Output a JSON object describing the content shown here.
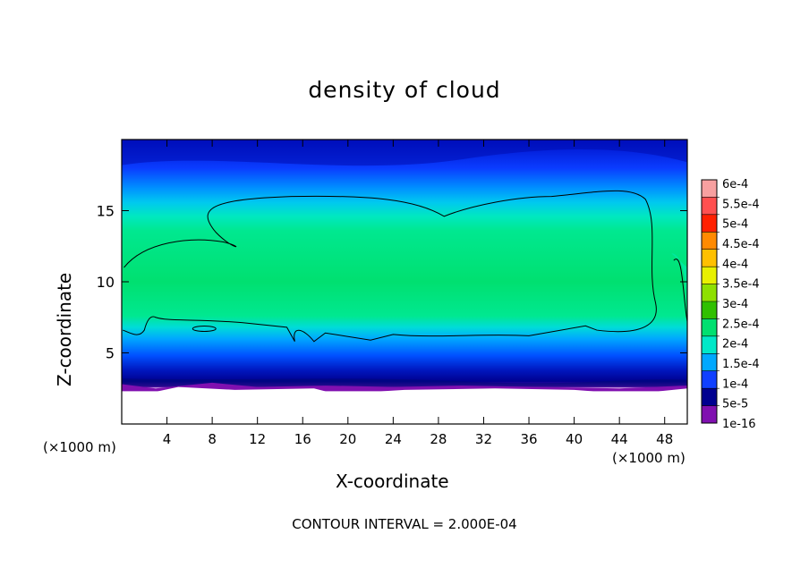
{
  "chart_data": {
    "type": "heatmap",
    "title": "density of cloud",
    "xlabel": "X-coordinate",
    "ylabel": "Z-coordinate",
    "x_unit_label_left": "(×1000 m)",
    "x_unit_label_right": "(×1000 m)",
    "footer": "CONTOUR INTERVAL = 2.000E-04",
    "xlim": [
      0,
      50
    ],
    "ylim": [
      0,
      20
    ],
    "x_ticks": [
      "4",
      "8",
      "12",
      "16",
      "20",
      "24",
      "28",
      "32",
      "36",
      "40",
      "44",
      "48"
    ],
    "x_tick_values": [
      4,
      8,
      12,
      16,
      20,
      24,
      28,
      32,
      36,
      40,
      44,
      48
    ],
    "y_ticks": [
      "5",
      "10",
      "15"
    ],
    "y_tick_values": [
      5,
      10,
      15
    ],
    "colorbar": {
      "labels": [
        "6e-4",
        "5.5e-4",
        "5e-4",
        "4.5e-4",
        "4e-4",
        "3.5e-4",
        "3e-4",
        "2.5e-4",
        "2e-4",
        "1.5e-4",
        "1e-4",
        "5e-5",
        "1e-16"
      ],
      "colors": [
        "#f7a0a0",
        "#ff5050",
        "#ff2000",
        "#ff8a00",
        "#ffc000",
        "#e8f000",
        "#8ee000",
        "#30c000",
        "#00e070",
        "#00e8c8",
        "#00a8ff",
        "#1040ff",
        "#000090",
        "#8010b0"
      ]
    },
    "contour_level": 0.0002,
    "field_description_values": {
      "empty_below_z": 2.5,
      "core_z_range": [
        6,
        16
      ],
      "core_value": 0.00025,
      "top_value": 5e-05
    }
  }
}
